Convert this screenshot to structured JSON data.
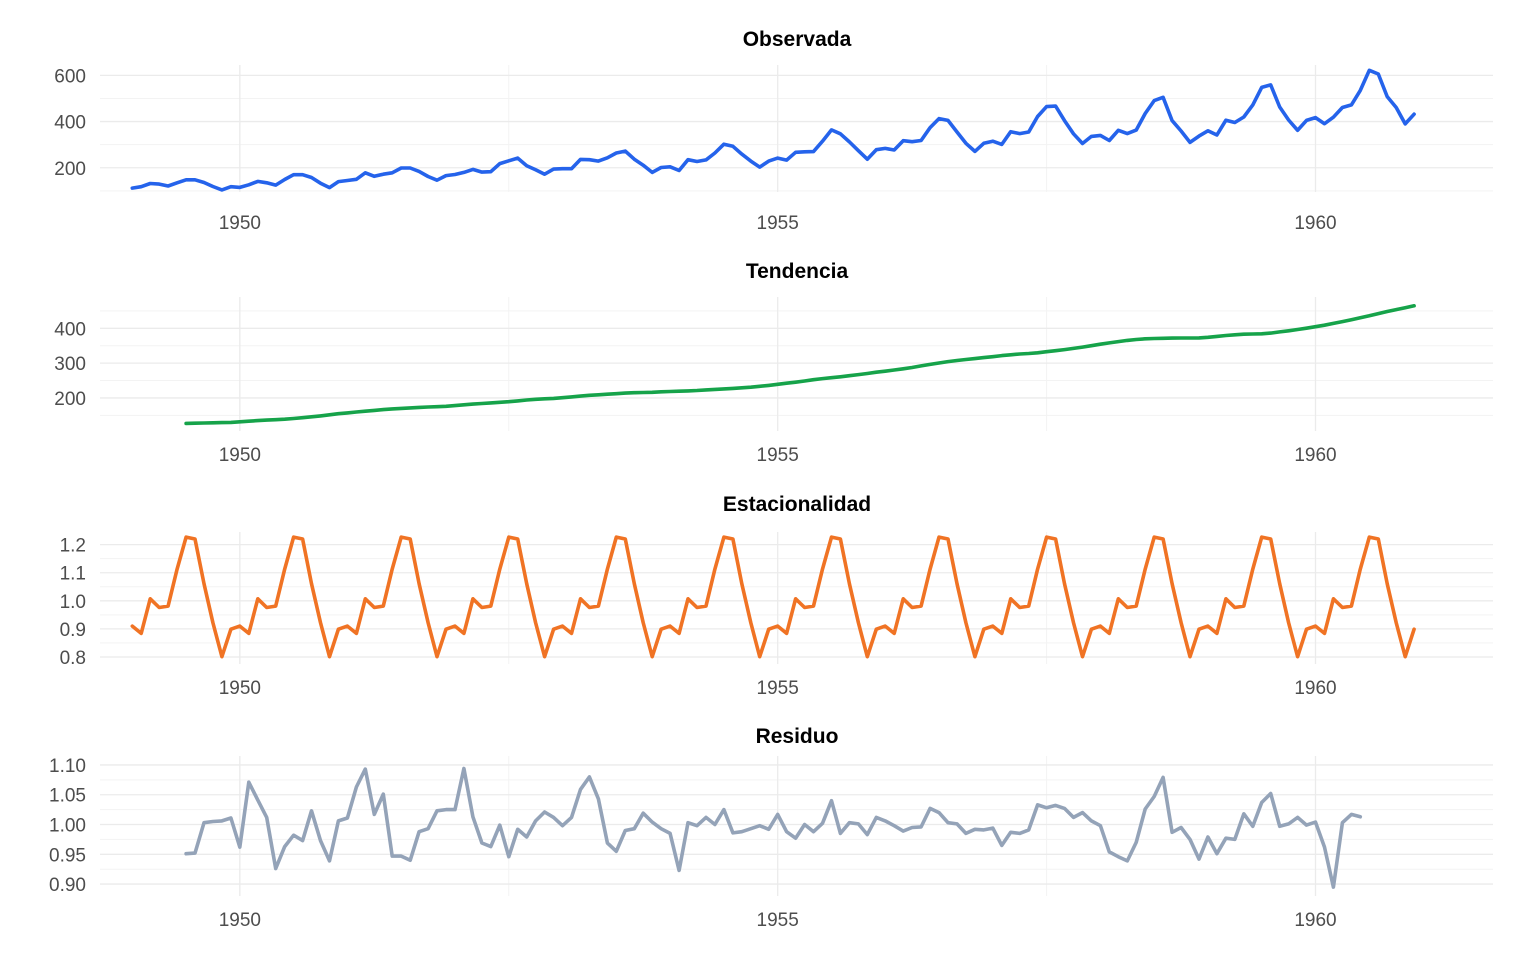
{
  "chart_data": [
    {
      "type": "line",
      "title": "Observada",
      "xlabel": "",
      "ylabel": "",
      "xlim": [
        1948.7,
        1961.65
      ],
      "ylim": [
        95,
        645
      ],
      "yticks": [
        200,
        400,
        600
      ],
      "ytick_labels": [
        "200",
        "400",
        "600"
      ],
      "xticks": [
        1950,
        1955,
        1960
      ],
      "xtick_labels": [
        "1950",
        "1955",
        "1960"
      ],
      "grid": true,
      "color": "#2563eb",
      "x_start": 1949.0,
      "x_step": 0.0833333,
      "values": [
        112,
        118,
        132,
        129,
        121,
        135,
        148,
        148,
        136,
        119,
        104,
        118,
        115,
        126,
        141,
        135,
        125,
        149,
        170,
        170,
        158,
        133,
        114,
        140,
        145,
        150,
        178,
        163,
        172,
        178,
        199,
        199,
        184,
        162,
        146,
        166,
        171,
        180,
        193,
        181,
        183,
        218,
        230,
        242,
        209,
        191,
        172,
        194,
        196,
        196,
        236,
        235,
        229,
        243,
        264,
        272,
        237,
        211,
        180,
        201,
        204,
        188,
        235,
        227,
        234,
        264,
        302,
        293,
        259,
        229,
        203,
        229,
        242,
        233,
        267,
        269,
        270,
        315,
        364,
        347,
        312,
        274,
        237,
        278,
        284,
        277,
        317,
        313,
        318,
        374,
        413,
        405,
        355,
        306,
        271,
        306,
        315,
        301,
        356,
        348,
        355,
        422,
        465,
        467,
        404,
        347,
        305,
        336,
        340,
        318,
        362,
        348,
        363,
        435,
        491,
        505,
        404,
        359,
        310,
        337,
        360,
        342,
        406,
        396,
        420,
        472,
        548,
        559,
        463,
        407,
        362,
        405,
        417,
        391,
        419,
        461,
        472,
        535,
        622,
        606,
        508,
        461,
        390,
        432
      ]
    },
    {
      "type": "line",
      "title": "Tendencia",
      "xlabel": "",
      "ylabel": "",
      "xlim": [
        1948.7,
        1961.65
      ],
      "ylim": [
        105,
        490
      ],
      "yticks": [
        200,
        300,
        400
      ],
      "ytick_labels": [
        "200",
        "300",
        "400"
      ],
      "xticks": [
        1950,
        1955,
        1960
      ],
      "xtick_labels": [
        "1950",
        "1955",
        "1960"
      ],
      "grid": true,
      "color": "#16a34a",
      "x_start": 1949.5,
      "x_step": 0.0833333,
      "values": [
        126.8,
        127.3,
        127.9,
        128.6,
        129.0,
        129.8,
        131.3,
        133.1,
        134.9,
        136.4,
        137.4,
        138.8,
        140.9,
        143.2,
        145.7,
        148.4,
        151.5,
        154.7,
        157.1,
        159.5,
        161.8,
        164.3,
        166.5,
        168.4,
        169.8,
        171.3,
        172.8,
        174.0,
        174.8,
        176.0,
        178.0,
        180.2,
        182.2,
        183.9,
        185.8,
        187.5,
        189.2,
        191.6,
        194.0,
        196.1,
        197.4,
        198.7,
        200.6,
        203.0,
        205.2,
        207.5,
        209.1,
        210.6,
        212.2,
        213.8,
        214.9,
        215.7,
        216.3,
        217.5,
        218.6,
        219.4,
        220.3,
        221.5,
        223.0,
        224.5,
        226.1,
        227.5,
        229.0,
        230.8,
        233.3,
        236.1,
        239.3,
        242.4,
        245.3,
        248.6,
        252.3,
        255.5,
        258.0,
        260.8,
        263.9,
        267.0,
        270.3,
        273.8,
        276.9,
        280.3,
        283.8,
        287.5,
        292.0,
        296.3,
        300.4,
        304.4,
        307.5,
        310.3,
        313.0,
        315.9,
        318.6,
        321.5,
        323.9,
        326.3,
        327.8,
        329.7,
        332.7,
        335.8,
        339.0,
        342.3,
        346.0,
        350.2,
        354.5,
        358.2,
        362.0,
        365.2,
        367.9,
        369.9,
        370.7,
        371.3,
        371.8,
        372.1,
        372.1,
        372.4,
        374.1,
        376.9,
        379.5,
        381.4,
        383.0,
        383.7,
        384.2,
        386.4,
        389.8,
        392.9,
        396.7,
        400.3,
        404.6,
        409.1,
        414.2,
        419.3,
        424.8,
        430.4,
        436.1,
        442.3,
        448.2,
        453.9,
        459.3,
        464.8
      ]
    },
    {
      "type": "line",
      "title": "Estacionalidad",
      "xlabel": "",
      "ylabel": "",
      "xlim": [
        1948.7,
        1961.65
      ],
      "ylim": [
        0.775,
        1.245
      ],
      "yticks": [
        0.8,
        0.9,
        1.0,
        1.1,
        1.2
      ],
      "ytick_labels": [
        "0.8",
        "0.9",
        "1.0",
        "1.1",
        "1.2"
      ],
      "xticks": [
        1950,
        1955,
        1960
      ],
      "xtick_labels": [
        "1950",
        "1955",
        "1960"
      ],
      "grid": true,
      "color": "#f07324",
      "x_start": 1949.0,
      "x_step": 0.0833333,
      "period_values": [
        0.91,
        0.884,
        1.007,
        0.976,
        0.981,
        1.113,
        1.227,
        1.22,
        1.061,
        0.922,
        0.801,
        0.899
      ],
      "n_points": 144
    },
    {
      "type": "line",
      "title": "Residuo",
      "xlabel": "",
      "ylabel": "",
      "xlim": [
        1948.7,
        1961.65
      ],
      "ylim": [
        0.88,
        1.115
      ],
      "yticks": [
        0.9,
        0.95,
        1.0,
        1.05,
        1.1
      ],
      "ytick_labels": [
        "0.90",
        "0.95",
        "1.00",
        "1.05",
        "1.10"
      ],
      "xticks": [
        1950,
        1955,
        1960
      ],
      "xtick_labels": [
        "1950",
        "1955",
        "1960"
      ],
      "grid": true,
      "color": "#94a3b8",
      "x_start": 1949.5,
      "x_step": 0.0833333,
      "values": [
        0.951,
        0.952,
        1.003,
        1.005,
        1.006,
        1.011,
        0.962,
        1.071,
        1.041,
        1.012,
        0.926,
        0.963,
        0.982,
        0.973,
        1.023,
        0.973,
        0.939,
        1.006,
        1.011,
        1.063,
        1.093,
        1.017,
        1.051,
        0.947,
        0.947,
        0.94,
        0.988,
        0.993,
        1.023,
        1.025,
        1.025,
        1.094,
        1.013,
        0.969,
        0.963,
        0.999,
        0.946,
        0.992,
        0.979,
        1.006,
        1.021,
        1.012,
        0.998,
        1.012,
        1.059,
        1.08,
        1.043,
        0.969,
        0.955,
        0.99,
        0.993,
        1.019,
        1.004,
        0.993,
        0.985,
        0.923,
        1.003,
        0.998,
        1.012,
        1.0,
        1.025,
        0.986,
        0.988,
        0.993,
        0.998,
        0.992,
        1.017,
        0.988,
        0.977,
        1.0,
        0.988,
        1.002,
        1.04,
        0.985,
        1.003,
        1.001,
        0.983,
        1.012,
        1.006,
        0.998,
        0.989,
        0.995,
        0.996,
        1.027,
        1.02,
        1.003,
        1.001,
        0.985,
        0.992,
        0.991,
        0.994,
        0.965,
        0.987,
        0.985,
        0.991,
        1.033,
        1.028,
        1.032,
        1.027,
        1.012,
        1.02,
        1.006,
        0.998,
        0.954,
        0.946,
        0.939,
        0.97,
        1.026,
        1.047,
        1.079,
        0.987,
        0.995,
        0.975,
        0.942,
        0.979,
        0.951,
        0.977,
        0.975,
        1.018,
        0.997,
        1.037,
        1.052,
        0.997,
        1.001,
        1.012,
        0.999,
        1.004,
        0.962,
        0.895,
        1.003,
        1.017,
        1.013
      ]
    }
  ]
}
